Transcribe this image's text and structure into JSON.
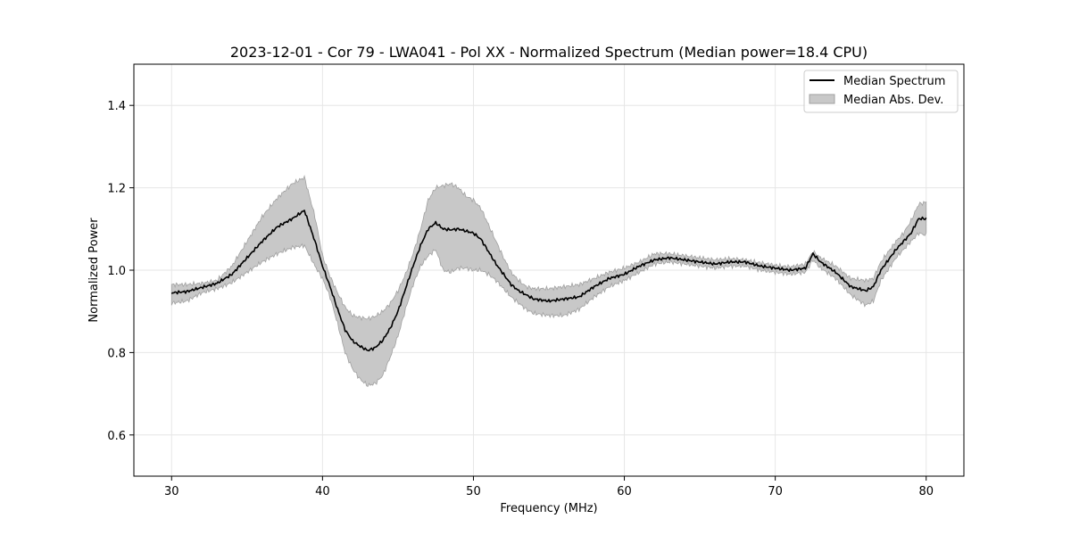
{
  "chart_data": {
    "type": "line",
    "title": "2023-12-01 - Cor 79 - LWA041 - Pol XX - Normalized Spectrum (Median power=18.4 CPU)",
    "xlabel": "Frequency (MHz)",
    "ylabel": "Normalized Power",
    "xlim": [
      27.5,
      82.5
    ],
    "ylim": [
      0.5,
      1.5
    ],
    "xticks": [
      30,
      40,
      50,
      60,
      70,
      80
    ],
    "yticks": [
      0.6,
      0.8,
      1.0,
      1.2,
      1.4
    ],
    "xtick_labels": [
      "30",
      "40",
      "50",
      "60",
      "70",
      "80"
    ],
    "ytick_labels": [
      "0.6",
      "0.8",
      "1.0",
      "1.2",
      "1.4"
    ],
    "grid": true,
    "legend_position": "top-right",
    "legend": [
      "Median Spectrum",
      "Median Abs. Dev."
    ],
    "series": [
      {
        "name": "Median Spectrum",
        "color": "#000000",
        "x": [
          30,
          31,
          32,
          33,
          34,
          35,
          36,
          37,
          38,
          38.8,
          39.5,
          40,
          40.5,
          41,
          41.5,
          42,
          42.5,
          43,
          43.5,
          44,
          44.5,
          45,
          45.5,
          46,
          46.5,
          47,
          47.5,
          48,
          48.5,
          49,
          49.5,
          50,
          50.5,
          51,
          51.5,
          52,
          52.5,
          53,
          53.5,
          54,
          55,
          56,
          57,
          58,
          59,
          60,
          61,
          62,
          63,
          64,
          65,
          66,
          67,
          68,
          69,
          70,
          71,
          72,
          72.5,
          73,
          74,
          75,
          76,
          76.5,
          77,
          78,
          78.5,
          79,
          79.5,
          80
        ],
        "values": [
          0.945,
          0.948,
          0.958,
          0.968,
          0.99,
          1.03,
          1.07,
          1.105,
          1.125,
          1.145,
          1.07,
          1.01,
          0.96,
          0.905,
          0.855,
          0.828,
          0.815,
          0.805,
          0.812,
          0.83,
          0.86,
          0.9,
          0.955,
          1.01,
          1.06,
          1.1,
          1.115,
          1.1,
          1.098,
          1.1,
          1.095,
          1.09,
          1.075,
          1.045,
          1.015,
          0.99,
          0.965,
          0.95,
          0.94,
          0.93,
          0.925,
          0.93,
          0.935,
          0.96,
          0.98,
          0.99,
          1.01,
          1.025,
          1.03,
          1.025,
          1.02,
          1.015,
          1.02,
          1.02,
          1.01,
          1.005,
          1.0,
          1.005,
          1.04,
          1.02,
          0.995,
          0.96,
          0.95,
          0.96,
          1.0,
          1.05,
          1.07,
          1.09,
          1.125,
          1.125
        ]
      },
      {
        "name": "Median Abs. Dev.",
        "color": "#c8c8c8",
        "edge_color": "#a0a0a0",
        "x": [
          30,
          31,
          32,
          33,
          34,
          35,
          36,
          37,
          38,
          38.8,
          39.5,
          40,
          40.5,
          41,
          41.5,
          42,
          42.5,
          43,
          43.5,
          44,
          44.5,
          45,
          45.5,
          46,
          46.5,
          47,
          47.5,
          48,
          48.5,
          49,
          49.5,
          50,
          50.5,
          51,
          51.5,
          52,
          52.5,
          53,
          53.5,
          54,
          55,
          56,
          57,
          58,
          59,
          60,
          61,
          62,
          63,
          64,
          65,
          66,
          67,
          68,
          69,
          70,
          71,
          72,
          72.5,
          73,
          74,
          75,
          76,
          76.5,
          77,
          78,
          78.5,
          79,
          79.5,
          80
        ],
        "upper": [
          0.965,
          0.965,
          0.968,
          0.975,
          1.01,
          1.07,
          1.13,
          1.175,
          1.21,
          1.225,
          1.13,
          1.035,
          0.985,
          0.945,
          0.91,
          0.89,
          0.885,
          0.882,
          0.888,
          0.9,
          0.92,
          0.95,
          0.99,
          1.04,
          1.1,
          1.17,
          1.2,
          1.205,
          1.21,
          1.2,
          1.18,
          1.17,
          1.15,
          1.11,
          1.07,
          1.03,
          0.995,
          0.975,
          0.96,
          0.955,
          0.955,
          0.96,
          0.965,
          0.98,
          0.995,
          1.005,
          1.02,
          1.04,
          1.04,
          1.035,
          1.03,
          1.025,
          1.028,
          1.025,
          1.018,
          1.012,
          1.008,
          1.015,
          1.045,
          1.03,
          1.01,
          0.98,
          0.975,
          0.98,
          1.02,
          1.07,
          1.09,
          1.12,
          1.16,
          1.165
        ],
        "lower": [
          0.92,
          0.925,
          0.945,
          0.955,
          0.97,
          0.995,
          1.02,
          1.04,
          1.055,
          1.06,
          1.01,
          0.98,
          0.935,
          0.87,
          0.8,
          0.76,
          0.735,
          0.72,
          0.725,
          0.745,
          0.79,
          0.84,
          0.905,
          0.965,
          1.01,
          1.035,
          1.05,
          1.0,
          0.995,
          1.005,
          1.005,
          1.0,
          1.0,
          0.99,
          0.975,
          0.955,
          0.935,
          0.92,
          0.905,
          0.895,
          0.89,
          0.89,
          0.905,
          0.935,
          0.96,
          0.975,
          0.995,
          1.015,
          1.02,
          1.015,
          1.01,
          1.005,
          1.01,
          1.01,
          1.0,
          0.995,
          0.99,
          0.995,
          1.025,
          1.005,
          0.98,
          0.94,
          0.915,
          0.925,
          0.975,
          1.03,
          1.05,
          1.07,
          1.09,
          1.085
        ]
      }
    ]
  }
}
